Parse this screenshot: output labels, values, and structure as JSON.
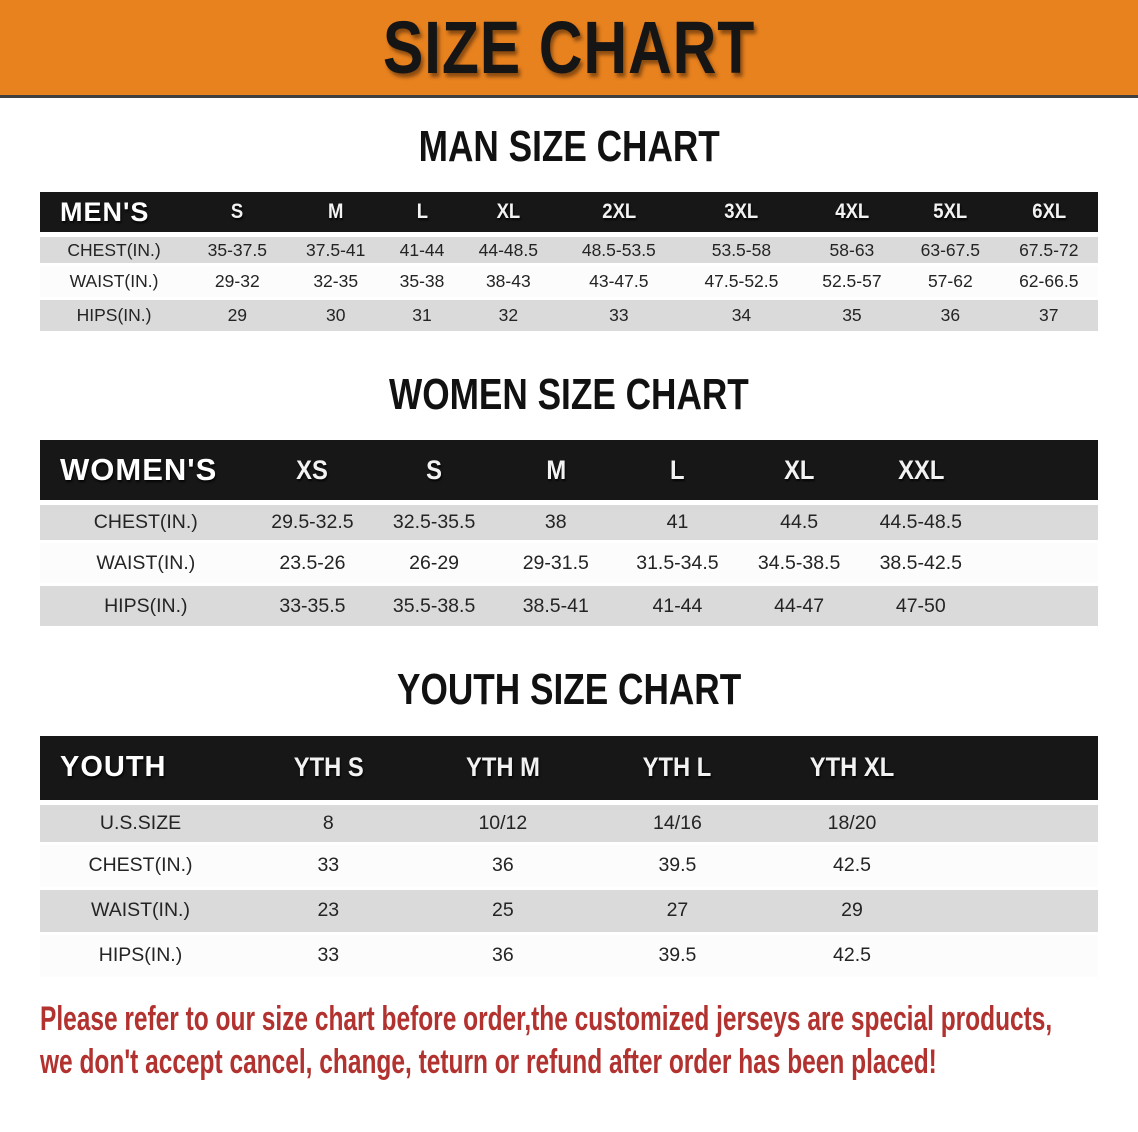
{
  "banner": {
    "title": "SIZE CHART"
  },
  "colors": {
    "banner_orange": "#e8821f",
    "bar_black": "#171717",
    "row_gray": "#dadada",
    "disclaimer_red": "#b23230"
  },
  "sections": [
    {
      "heading": "MAN SIZE CHART",
      "table": {
        "header_label": "MEN'S",
        "columns": [
          "S",
          "M",
          "L",
          "XL",
          "2XL",
          "3XL",
          "4XL",
          "5XL",
          "6XL"
        ],
        "rows": [
          {
            "label": "CHEST(IN.)",
            "values": [
              "35-37.5",
              "37.5-41",
              "41-44",
              "44-48.5",
              "48.5-53.5",
              "53.5-58",
              "58-63",
              "63-67.5",
              "67.5-72"
            ]
          },
          {
            "label": "WAIST(IN.)",
            "values": [
              "29-32",
              "32-35",
              "35-38",
              "38-43",
              "43-47.5",
              "47.5-52.5",
              "52.5-57",
              "57-62",
              "62-66.5"
            ]
          },
          {
            "label": "HIPS(IN.)",
            "values": [
              "29",
              "30",
              "31",
              "32",
              "33",
              "34",
              "35",
              "36",
              "37"
            ]
          }
        ]
      }
    },
    {
      "heading": "WOMEN SIZE CHART",
      "table": {
        "header_label": "WOMEN'S",
        "columns": [
          "XS",
          "S",
          "M",
          "L",
          "XL",
          "XXL"
        ],
        "rows": [
          {
            "label": "CHEST(IN.)",
            "values": [
              "29.5-32.5",
              "32.5-35.5",
              "38",
              "41",
              "44.5",
              "44.5-48.5"
            ]
          },
          {
            "label": "WAIST(IN.)",
            "values": [
              "23.5-26",
              "26-29",
              "29-31.5",
              "31.5-34.5",
              "34.5-38.5",
              "38.5-42.5"
            ]
          },
          {
            "label": "HIPS(IN.)",
            "values": [
              "33-35.5",
              "35.5-38.5",
              "38.5-41",
              "41-44",
              "44-47",
              "47-50"
            ]
          }
        ]
      }
    },
    {
      "heading": "YOUTH SIZE CHART",
      "table": {
        "header_label": "YOUTH",
        "columns": [
          "YTH S",
          "YTH M",
          "YTH L",
          "YTH XL"
        ],
        "rows": [
          {
            "label": "U.S.SIZE",
            "values": [
              "8",
              "10/12",
              "14/16",
              "18/20"
            ]
          },
          {
            "label": "CHEST(IN.)",
            "values": [
              "33",
              "36",
              "39.5",
              "42.5"
            ]
          },
          {
            "label": "WAIST(IN.)",
            "values": [
              "23",
              "25",
              "27",
              "29"
            ]
          },
          {
            "label": "HIPS(IN.)",
            "values": [
              "33",
              "36",
              "39.5",
              "42.5"
            ]
          }
        ]
      }
    }
  ],
  "disclaimer": {
    "line1": "Please refer to our size chart before order,the customized jerseys are special products,",
    "line2": "we don't accept cancel, change, teturn or refund after order has been placed!"
  }
}
